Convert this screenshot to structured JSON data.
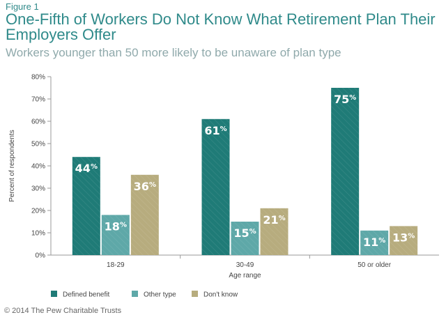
{
  "figure_label": "Figure 1",
  "title": "One-Fifth of Workers Do Not Know What Retirement Plan Their Employers Offer",
  "subtitle": "Workers younger than 50 more likely to be unaware of plan type",
  "footer": "© 2014 The Pew Charitable Trusts",
  "colors": {
    "defined_benefit": "#1f7b77",
    "other_type": "#5ea8a8",
    "dont_know": "#b7ac7e"
  },
  "chart_data": {
    "type": "bar",
    "categories": [
      "18-29",
      "30-49",
      "50 or older"
    ],
    "series": [
      {
        "name": "Defined benefit",
        "values": [
          44,
          61,
          75
        ]
      },
      {
        "name": "Other type",
        "values": [
          18,
          15,
          11
        ]
      },
      {
        "name": "Don't know",
        "values": [
          36,
          21,
          13
        ]
      }
    ],
    "xlabel": "Age range",
    "ylabel": "Percent of respondents",
    "ylim": [
      0,
      80
    ],
    "yticks": [
      "0%",
      "10%",
      "20%",
      "30%",
      "40%",
      "50%",
      "60%",
      "70%",
      "80%"
    ],
    "value_suffix": "%",
    "legend_position": "bottom-left",
    "grid": false
  }
}
